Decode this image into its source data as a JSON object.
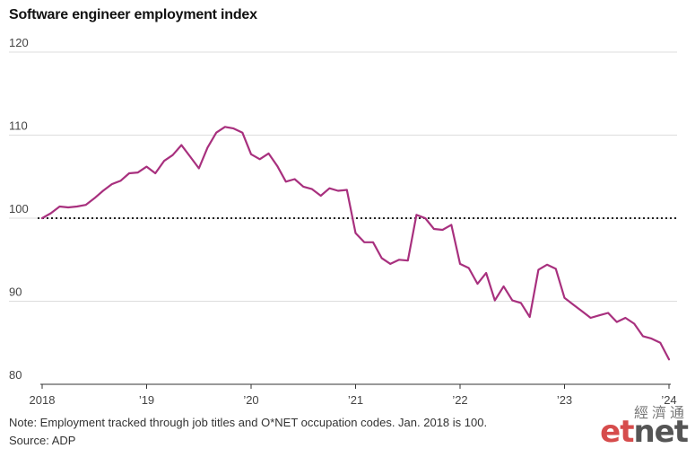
{
  "chart_data": {
    "type": "line",
    "title": "Software engineer employment index",
    "xlabel": "",
    "ylabel": "",
    "ylim": [
      80,
      120
    ],
    "y_ticks": [
      80,
      90,
      100,
      110,
      120
    ],
    "x_tick_labels": [
      "2018",
      "’19",
      "’20",
      "’21",
      "’22",
      "’23",
      "’24"
    ],
    "x_tick_years": [
      2018,
      2019,
      2020,
      2021,
      2022,
      2023,
      2024
    ],
    "reference_line": {
      "value": 100,
      "style": "dotted"
    },
    "grid": "horizontal",
    "line_color": "#a8307e",
    "series": [
      {
        "x": [
          2018.0,
          2018.083,
          2018.167,
          2018.25,
          2018.333,
          2018.417,
          2018.5,
          2018.583,
          2018.667,
          2018.75,
          2018.833,
          2018.917,
          2019.0,
          2019.083,
          2019.167,
          2019.25,
          2019.333,
          2019.417,
          2019.5,
          2019.583,
          2019.667,
          2019.75,
          2019.833,
          2019.917,
          2020.0,
          2020.083,
          2020.167,
          2020.25,
          2020.333,
          2020.417,
          2020.5,
          2020.583,
          2020.667,
          2020.75,
          2020.833,
          2020.917,
          2021.0,
          2021.083,
          2021.167,
          2021.25,
          2021.333,
          2021.417,
          2021.5,
          2021.583,
          2021.667,
          2021.75,
          2021.833,
          2021.917,
          2022.0,
          2022.083,
          2022.167,
          2022.25,
          2022.333,
          2022.417,
          2022.5,
          2022.583,
          2022.667,
          2022.75,
          2022.833,
          2022.917,
          2023.0,
          2023.083,
          2023.167,
          2023.25,
          2023.333,
          2023.417,
          2023.5,
          2023.583,
          2023.667,
          2023.75,
          2023.833,
          2023.917,
          2024.0
        ],
        "values": [
          100.0,
          100.6,
          101.4,
          101.3,
          101.4,
          101.6,
          102.4,
          103.3,
          104.1,
          104.5,
          105.4,
          105.5,
          106.2,
          105.4,
          106.9,
          107.6,
          108.8,
          107.4,
          106.0,
          108.5,
          110.3,
          111.0,
          110.8,
          110.3,
          107.7,
          107.1,
          107.8,
          106.3,
          104.4,
          104.7,
          103.8,
          103.5,
          102.7,
          103.6,
          103.3,
          103.4,
          98.2,
          97.1,
          97.1,
          95.2,
          94.5,
          95.0,
          94.9,
          100.4,
          100.0,
          98.7,
          98.6,
          99.2,
          94.5,
          94.0,
          92.1,
          93.4,
          90.1,
          91.8,
          90.1,
          89.8,
          88.1,
          93.8,
          94.4,
          93.9,
          90.4,
          89.6,
          88.8,
          88.0,
          88.3,
          88.6,
          87.5,
          88.0,
          87.3,
          85.8,
          85.5,
          85.0,
          83.0
        ]
      }
    ]
  },
  "footer": {
    "note": "Note: Employment tracked through job titles and O*NET occupation codes. Jan. 2018 is 100.",
    "source": "Source: ADP"
  },
  "logo": {
    "cn": "經濟通",
    "word_a": "et",
    "word_b": "net"
  }
}
